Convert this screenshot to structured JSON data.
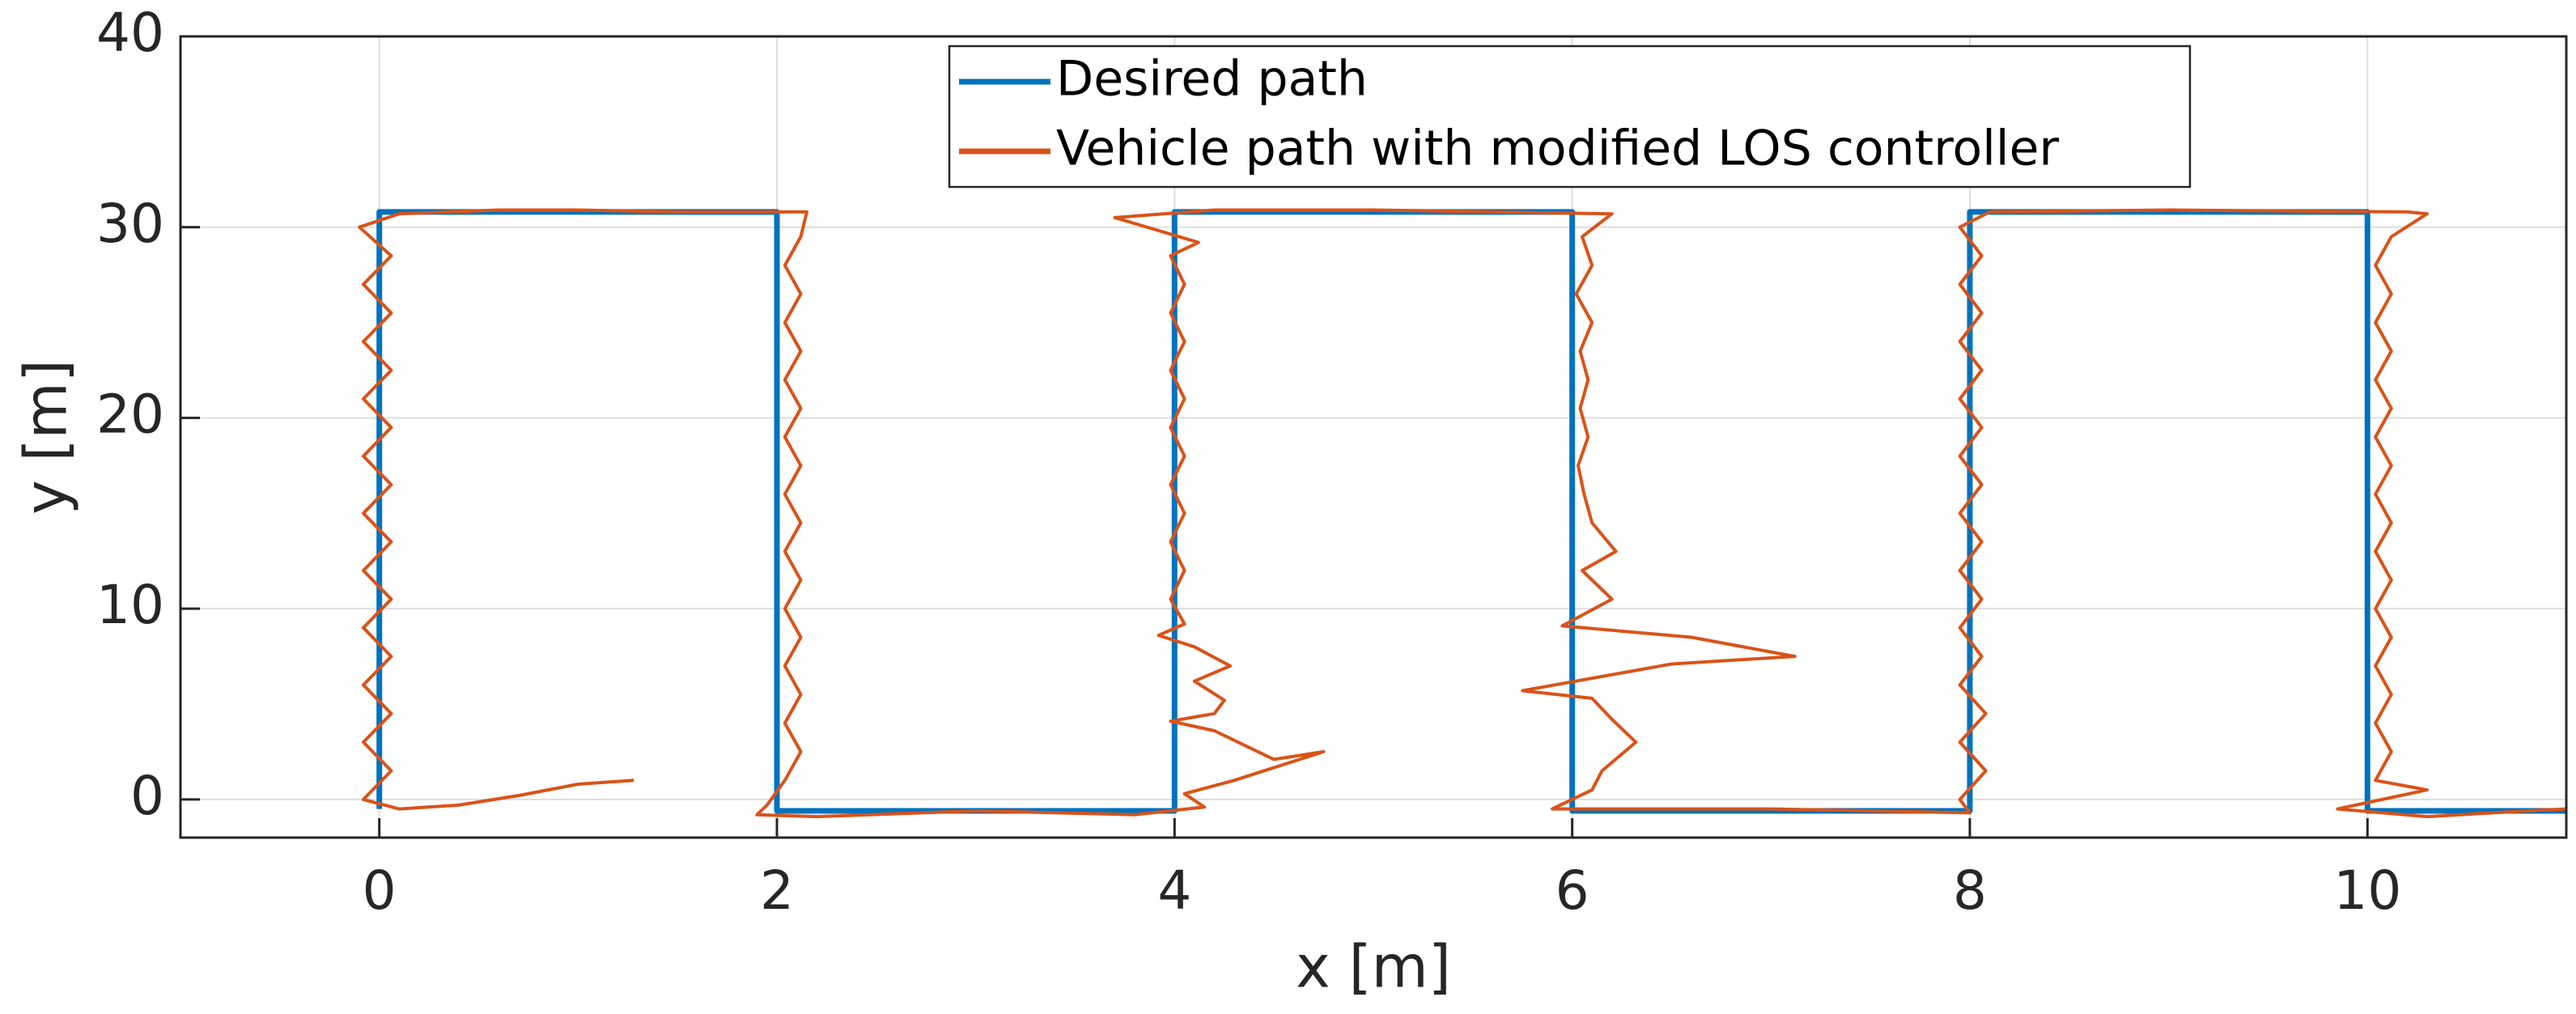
{
  "chart_data": {
    "type": "line",
    "xlabel": "x [m]",
    "ylabel": "y [m]",
    "xlim": [
      -1,
      11
    ],
    "xticks": [
      0,
      2,
      4,
      6,
      8,
      10
    ],
    "ylim": [
      -2,
      40
    ],
    "yticks": [
      0,
      10,
      20,
      30,
      40
    ],
    "grid": true,
    "legend": "top",
    "series": [
      {
        "name": "Desired path",
        "color": "#0072bd",
        "x": [
          0,
          0,
          2,
          2,
          4,
          4,
          6,
          6,
          8,
          8,
          10,
          10,
          11
        ],
        "values": [
          -0.5,
          30.8,
          30.8,
          -0.6,
          -0.6,
          30.8,
          30.8,
          -0.6,
          -0.6,
          30.8,
          30.8,
          -0.6,
          -0.6
        ]
      },
      {
        "name": "Vehicle path with modified LOS controller",
        "color": "#d95319",
        "x": [
          1.28,
          1.0,
          0.7,
          0.4,
          0.1,
          -0.08,
          0.06,
          -0.08,
          0.06,
          -0.08,
          0.06,
          -0.08,
          0.06,
          -0.08,
          0.06,
          -0.08,
          0.06,
          -0.08,
          0.06,
          -0.08,
          0.06,
          -0.08,
          0.06,
          -0.08,
          0.06,
          -0.1,
          0.1,
          0.6,
          1.0,
          1.5,
          2.15,
          2.12,
          2.04,
          2.12,
          2.04,
          2.12,
          2.04,
          2.12,
          2.04,
          2.12,
          2.04,
          2.12,
          2.04,
          2.12,
          2.04,
          2.12,
          2.04,
          2.12,
          2.04,
          2.12,
          2.04,
          1.95,
          1.9,
          2.2,
          3.0,
          3.8,
          4.15,
          4.05,
          4.3,
          4.75,
          4.5,
          4.2,
          3.98,
          4.2,
          4.25,
          4.1,
          4.28,
          4.1,
          3.92,
          4.05,
          3.98,
          4.05,
          3.98,
          4.05,
          3.98,
          4.05,
          3.98,
          4.05,
          3.98,
          4.05,
          3.98,
          4.05,
          3.98,
          4.12,
          3.7,
          4.2,
          5.0,
          6.2,
          6.05,
          6.1,
          6.02,
          6.1,
          6.04,
          6.08,
          6.04,
          6.08,
          6.03,
          6.06,
          6.1,
          6.22,
          6.05,
          6.2,
          5.95,
          6.6,
          7.12,
          6.5,
          5.75,
          6.1,
          6.2,
          6.32,
          6.15,
          6.1,
          5.9,
          7.0,
          8.0,
          7.95,
          8.08,
          7.95,
          8.08,
          7.95,
          8.06,
          7.95,
          8.06,
          7.95,
          8.06,
          7.95,
          8.06,
          7.95,
          8.06,
          7.95,
          8.06,
          7.95,
          8.06,
          7.95,
          8.06,
          7.95,
          8.1,
          9.0,
          10.2,
          10.3,
          10.12,
          10.04,
          10.12,
          10.04,
          10.12,
          10.04,
          10.12,
          10.04,
          10.12,
          10.04,
          10.12,
          10.04,
          10.12,
          10.04,
          10.12,
          10.04,
          10.12,
          10.04,
          10.12,
          10.04,
          10.3,
          9.85,
          10.3,
          10.8,
          11.0
        ],
        "values": [
          1.0,
          0.8,
          0.2,
          -0.3,
          -0.5,
          0,
          1.5,
          3,
          4.5,
          6,
          7.5,
          9,
          10.5,
          12,
          13.5,
          15,
          16.5,
          18,
          19.5,
          21,
          22.5,
          24,
          25.5,
          27,
          28.5,
          30,
          30.7,
          30.9,
          30.9,
          30.8,
          30.8,
          29.5,
          28,
          26.5,
          25,
          23.5,
          22,
          20.5,
          19,
          17.5,
          16,
          14.5,
          13,
          11.5,
          10,
          8.5,
          7,
          5.5,
          4,
          2.5,
          1,
          -0.3,
          -0.8,
          -0.9,
          -0.6,
          -0.8,
          -0.4,
          0.3,
          1,
          2.5,
          2.1,
          3.6,
          4.1,
          4.5,
          5.2,
          6.2,
          7,
          8,
          8.6,
          9.2,
          10.5,
          12,
          13.5,
          15,
          16.5,
          18,
          19.5,
          21,
          22.5,
          24,
          25.5,
          27,
          28.5,
          29.2,
          30.5,
          30.9,
          30.9,
          30.7,
          29.5,
          28,
          26.5,
          25,
          23.5,
          22,
          20.5,
          19,
          17.5,
          16,
          14.5,
          13,
          12,
          10.5,
          9.1,
          8.5,
          7.5,
          7.1,
          5.7,
          5.3,
          4.2,
          3,
          1.5,
          0.5,
          -0.5,
          -0.5,
          -0.7,
          0,
          1.5,
          3,
          4.5,
          6,
          7.5,
          9,
          10.5,
          12,
          13.5,
          15,
          16.5,
          18,
          19.5,
          21,
          22.5,
          24,
          25.5,
          27,
          28.5,
          30,
          30.8,
          30.9,
          30.8,
          30.7,
          29.5,
          28,
          26.5,
          25,
          23.5,
          22,
          20.5,
          19,
          17.5,
          16,
          14.5,
          13,
          11.5,
          10,
          8.5,
          7,
          5.5,
          4,
          2.5,
          1,
          0.5,
          -0.5,
          -0.9,
          -0.6,
          -0.5
        ]
      }
    ]
  }
}
